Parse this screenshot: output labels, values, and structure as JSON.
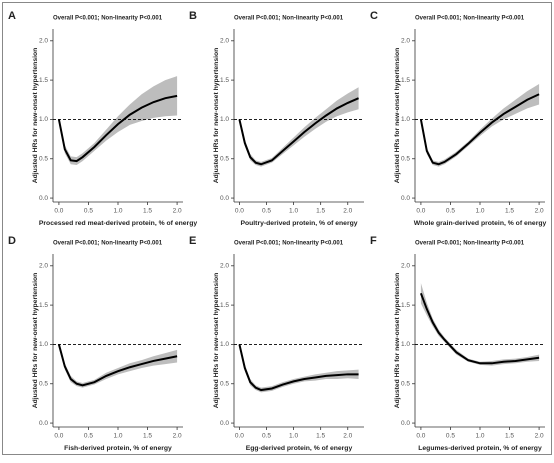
{
  "chart_data": [
    {
      "type": "line",
      "panel": "A",
      "title": "Overall P<0.001; Non-linearity P<0.001",
      "ylabel": "Adjusted HRs for new-onset hypertension",
      "xlabel": "Processed red meat-derived protein, % of energy",
      "x": [
        0,
        0.1,
        0.2,
        0.3,
        0.4,
        0.6,
        0.8,
        1.0,
        1.2,
        1.4,
        1.6,
        1.8,
        2.0
      ],
      "xlim": [
        -0.1,
        2.1
      ],
      "xticks": [
        {
          "value": 0,
          "label": "0.0"
        },
        {
          "value": 0.5,
          "label": "0.5"
        },
        {
          "value": 1,
          "label": "1.0"
        },
        {
          "value": 1.5,
          "label": "1.5"
        },
        {
          "value": 2,
          "label": "2.0"
        }
      ],
      "ylim": [
        -0.05,
        2.15
      ],
      "yticks": [
        {
          "value": 0,
          "label": "0.0"
        },
        {
          "value": 0.5,
          "label": "0.5"
        },
        {
          "value": 1,
          "label": "1.0"
        },
        {
          "value": 1.5,
          "label": "1.5"
        },
        {
          "value": 2,
          "label": "2.0"
        }
      ],
      "reference_line": 1,
      "band_color": "#bdbdbd",
      "series": [
        {
          "color": "#000000",
          "values": [
            1.0,
            0.62,
            0.48,
            0.47,
            0.52,
            0.65,
            0.8,
            0.94,
            1.06,
            1.15,
            1.22,
            1.27,
            1.3
          ],
          "lower": [
            1.0,
            0.57,
            0.43,
            0.42,
            0.47,
            0.6,
            0.73,
            0.84,
            0.93,
            0.98,
            1.02,
            1.04,
            1.05
          ],
          "upper": [
            1.0,
            0.67,
            0.53,
            0.52,
            0.57,
            0.7,
            0.87,
            1.04,
            1.19,
            1.32,
            1.42,
            1.5,
            1.55
          ]
        }
      ]
    },
    {
      "type": "line",
      "panel": "B",
      "title": "Overall P<0.001; Non-linearity P<0.001",
      "ylabel": "Adjusted HRs for new-onset hypertension",
      "xlabel": "Poultry-derived protein, % of energy",
      "x": [
        0,
        0.1,
        0.2,
        0.3,
        0.4,
        0.6,
        0.8,
        1.0,
        1.2,
        1.4,
        1.6,
        1.8,
        2.0,
        2.2
      ],
      "xlim": [
        -0.1,
        2.3
      ],
      "xticks": [
        {
          "value": 0,
          "label": "0.0"
        },
        {
          "value": 0.5,
          "label": "0.5"
        },
        {
          "value": 1,
          "label": "1.0"
        },
        {
          "value": 1.5,
          "label": "1.5"
        },
        {
          "value": 2,
          "label": "2.0"
        }
      ],
      "ylim": [
        -0.05,
        2.15
      ],
      "yticks": [
        {
          "value": 0,
          "label": "0.0"
        },
        {
          "value": 0.5,
          "label": "0.5"
        },
        {
          "value": 1,
          "label": "1.0"
        },
        {
          "value": 1.5,
          "label": "1.5"
        },
        {
          "value": 2,
          "label": "2.0"
        }
      ],
      "reference_line": 1,
      "band_color": "#bdbdbd",
      "series": [
        {
          "color": "#000000",
          "values": [
            1.0,
            0.7,
            0.52,
            0.45,
            0.43,
            0.48,
            0.6,
            0.72,
            0.84,
            0.95,
            1.05,
            1.14,
            1.21,
            1.27
          ],
          "lower": [
            1.0,
            0.66,
            0.48,
            0.42,
            0.4,
            0.45,
            0.56,
            0.67,
            0.78,
            0.88,
            0.97,
            1.04,
            1.09,
            1.13
          ],
          "upper": [
            1.0,
            0.74,
            0.56,
            0.48,
            0.46,
            0.51,
            0.64,
            0.77,
            0.9,
            1.02,
            1.13,
            1.24,
            1.33,
            1.41
          ]
        }
      ]
    },
    {
      "type": "line",
      "panel": "C",
      "title": "Overall P<0.001; Non-linearity P<0.001",
      "ylabel": "Adjusted HRs for new-onset hypertension",
      "xlabel": "Whole grain-derived protein, % of energy",
      "x": [
        0,
        0.1,
        0.2,
        0.3,
        0.4,
        0.6,
        0.8,
        1.0,
        1.2,
        1.4,
        1.6,
        1.8,
        2.0
      ],
      "xlim": [
        -0.1,
        2.1
      ],
      "xticks": [
        {
          "value": 0,
          "label": "0.0"
        },
        {
          "value": 0.5,
          "label": "0.5"
        },
        {
          "value": 1,
          "label": "1.0"
        },
        {
          "value": 1.5,
          "label": "1.5"
        },
        {
          "value": 2,
          "label": "2.0"
        }
      ],
      "ylim": [
        -0.05,
        2.15
      ],
      "yticks": [
        {
          "value": 0,
          "label": "0.0"
        },
        {
          "value": 0.5,
          "label": "0.5"
        },
        {
          "value": 1,
          "label": "1.0"
        },
        {
          "value": 1.5,
          "label": "1.5"
        },
        {
          "value": 2,
          "label": "2.0"
        }
      ],
      "reference_line": 1,
      "band_color": "#bdbdbd",
      "series": [
        {
          "color": "#000000",
          "values": [
            1.0,
            0.6,
            0.45,
            0.43,
            0.46,
            0.56,
            0.69,
            0.83,
            0.96,
            1.07,
            1.16,
            1.25,
            1.32
          ],
          "lower": [
            1.0,
            0.56,
            0.42,
            0.4,
            0.43,
            0.53,
            0.66,
            0.79,
            0.91,
            1.0,
            1.07,
            1.14,
            1.19
          ],
          "upper": [
            1.0,
            0.64,
            0.48,
            0.46,
            0.49,
            0.59,
            0.72,
            0.87,
            1.01,
            1.14,
            1.25,
            1.36,
            1.45
          ]
        }
      ]
    },
    {
      "type": "line",
      "panel": "D",
      "title": "Overall P<0.001; Non-linearity P<0.001",
      "ylabel": "Adjusted HRs for new-onset hypertension",
      "xlabel": "Fish-derived protein, % of energy",
      "x": [
        0,
        0.1,
        0.2,
        0.3,
        0.4,
        0.6,
        0.8,
        1.0,
        1.2,
        1.4,
        1.6,
        1.8,
        2.0
      ],
      "xlim": [
        -0.1,
        2.1
      ],
      "xticks": [
        {
          "value": 0,
          "label": "0.0"
        },
        {
          "value": 0.5,
          "label": "0.5"
        },
        {
          "value": 1,
          "label": "1.0"
        },
        {
          "value": 1.5,
          "label": "1.5"
        },
        {
          "value": 2,
          "label": "2.0"
        }
      ],
      "ylim": [
        -0.05,
        2.15
      ],
      "yticks": [
        {
          "value": 0,
          "label": "0.0"
        },
        {
          "value": 0.5,
          "label": "0.5"
        },
        {
          "value": 1,
          "label": "1.0"
        },
        {
          "value": 1.5,
          "label": "1.5"
        },
        {
          "value": 2,
          "label": "2.0"
        }
      ],
      "reference_line": 1,
      "band_color": "#bdbdbd",
      "series": [
        {
          "color": "#000000",
          "values": [
            1.0,
            0.72,
            0.56,
            0.5,
            0.48,
            0.52,
            0.6,
            0.66,
            0.71,
            0.75,
            0.79,
            0.82,
            0.85
          ],
          "lower": [
            1.0,
            0.68,
            0.52,
            0.47,
            0.45,
            0.49,
            0.56,
            0.62,
            0.66,
            0.7,
            0.73,
            0.75,
            0.77
          ],
          "upper": [
            1.0,
            0.76,
            0.6,
            0.53,
            0.51,
            0.55,
            0.64,
            0.7,
            0.76,
            0.8,
            0.85,
            0.89,
            0.93
          ]
        }
      ]
    },
    {
      "type": "line",
      "panel": "E",
      "title": "Overall P<0.001; Non-linearity P<0.001",
      "ylabel": "Adjusted HRs for new-onset hypertension",
      "xlabel": "Egg-derived protein, % of energy",
      "x": [
        0,
        0.1,
        0.2,
        0.3,
        0.4,
        0.6,
        0.8,
        1.0,
        1.2,
        1.4,
        1.6,
        1.8,
        2.0,
        2.2
      ],
      "xlim": [
        -0.1,
        2.3
      ],
      "xticks": [
        {
          "value": 0,
          "label": "0.0"
        },
        {
          "value": 0.5,
          "label": "0.5"
        },
        {
          "value": 1,
          "label": "1.0"
        },
        {
          "value": 1.5,
          "label": "1.5"
        },
        {
          "value": 2,
          "label": "2.0"
        }
      ],
      "ylim": [
        -0.05,
        2.15
      ],
      "yticks": [
        {
          "value": 0,
          "label": "0.0"
        },
        {
          "value": 0.5,
          "label": "0.5"
        },
        {
          "value": 1,
          "label": "1.0"
        },
        {
          "value": 1.5,
          "label": "1.5"
        },
        {
          "value": 2,
          "label": "2.0"
        }
      ],
      "reference_line": 1,
      "band_color": "#bdbdbd",
      "series": [
        {
          "color": "#000000",
          "values": [
            1.0,
            0.7,
            0.52,
            0.45,
            0.42,
            0.44,
            0.49,
            0.53,
            0.56,
            0.58,
            0.6,
            0.61,
            0.62,
            0.62
          ],
          "lower": [
            1.0,
            0.66,
            0.48,
            0.42,
            0.39,
            0.41,
            0.46,
            0.5,
            0.53,
            0.54,
            0.56,
            0.56,
            0.57,
            0.56
          ],
          "upper": [
            1.0,
            0.74,
            0.56,
            0.48,
            0.45,
            0.47,
            0.52,
            0.56,
            0.59,
            0.62,
            0.64,
            0.66,
            0.67,
            0.68
          ]
        }
      ]
    },
    {
      "type": "line",
      "panel": "F",
      "title": "Overall P<0.001; Non-linearity P<0.001",
      "ylabel": "Adjusted HRs for new-onset hypertension",
      "xlabel": "Legumes-derived protein, % of energy",
      "x": [
        0,
        0.1,
        0.2,
        0.3,
        0.4,
        0.5,
        0.6,
        0.8,
        1.0,
        1.2,
        1.4,
        1.6,
        1.8,
        2.0
      ],
      "xlim": [
        -0.1,
        2.1
      ],
      "xticks": [
        {
          "value": 0,
          "label": "0.0"
        },
        {
          "value": 0.5,
          "label": "0.5"
        },
        {
          "value": 1,
          "label": "1.0"
        },
        {
          "value": 1.5,
          "label": "1.5"
        },
        {
          "value": 2,
          "label": "2.0"
        }
      ],
      "ylim": [
        -0.05,
        2.15
      ],
      "yticks": [
        {
          "value": 0,
          "label": "0.0"
        },
        {
          "value": 0.5,
          "label": "0.5"
        },
        {
          "value": 1,
          "label": "1.0"
        },
        {
          "value": 1.5,
          "label": "1.5"
        },
        {
          "value": 2,
          "label": "2.0"
        }
      ],
      "reference_line": 1,
      "band_color": "#bdbdbd",
      "series": [
        {
          "color": "#000000",
          "values": [
            1.65,
            1.45,
            1.28,
            1.15,
            1.06,
            0.98,
            0.9,
            0.8,
            0.76,
            0.76,
            0.78,
            0.79,
            0.81,
            0.83
          ],
          "lower": [
            1.52,
            1.37,
            1.23,
            1.11,
            1.03,
            0.95,
            0.87,
            0.78,
            0.74,
            0.73,
            0.75,
            0.76,
            0.78,
            0.79
          ],
          "upper": [
            1.78,
            1.53,
            1.33,
            1.19,
            1.09,
            1.01,
            0.93,
            0.82,
            0.78,
            0.79,
            0.81,
            0.82,
            0.84,
            0.87
          ]
        }
      ]
    }
  ]
}
